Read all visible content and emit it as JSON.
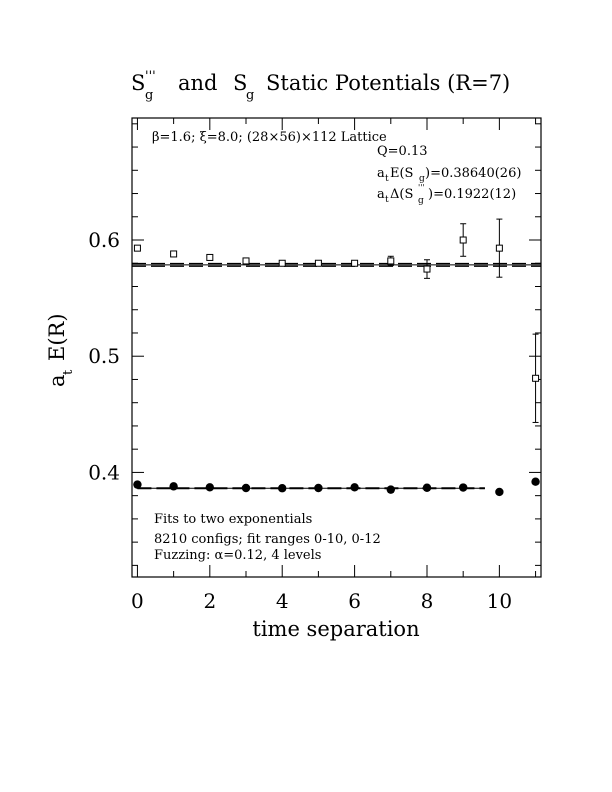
{
  "chart_data": {
    "type": "scatter",
    "title_parts": {
      "s1_main": "S",
      "s1_sup": "'''",
      "s1_sub": "g",
      "and": "and",
      "s2_main": "S",
      "s2_sub": "g",
      "rest": "Static Potentials (R=7)"
    },
    "xlabel": "time separation",
    "ylabel": "a",
    "ylabel_sub": "t",
    "ylabel_rest": "E(R)",
    "xlim": [
      -0.15,
      11.15
    ],
    "ylim": [
      0.31,
      0.705
    ],
    "x_ticks": [
      "0",
      "2",
      "4",
      "6",
      "8",
      "10"
    ],
    "y_ticks": [
      "0.4",
      "0.5",
      "0.6"
    ],
    "annotations": {
      "lattice": "β=1.6; ξ=8.0; (28×56)×112 Lattice",
      "q": "Q=0.13",
      "energy_a": "a",
      "energy_sub_t": "t",
      "energy_mid": "E(S",
      "energy_sub_g": "g",
      "energy_val": ")=0.38640(26)",
      "delta_a": "a",
      "delta_sub_t": "t",
      "delta_mid": "Δ(S",
      "delta_sup": "'''",
      "delta_sub_g": "g",
      "delta_val": " )=0.1922(12)",
      "fits": "Fits to two exponentials",
      "configs": "8210 configs; fit ranges 0-10, 0-12",
      "fuzzing": "Fuzzing: α=0.12, 4 levels"
    },
    "series": [
      {
        "name": "S_g''' (open squares)",
        "marker": "open-square",
        "x": [
          0,
          1,
          2,
          3,
          4,
          5,
          6,
          7,
          8,
          9,
          10,
          11
        ],
        "y": [
          0.593,
          0.588,
          0.585,
          0.582,
          0.58,
          0.58,
          0.58,
          0.582,
          0.575,
          0.6,
          0.593,
          0.481
        ],
        "err": [
          0.002,
          0.002,
          0.002,
          0.002,
          0.002,
          0.002,
          0.003,
          0.004,
          0.008,
          0.014,
          0.025,
          0.038
        ]
      },
      {
        "name": "S_g (filled circles)",
        "marker": "filled-circle",
        "x": [
          0,
          1,
          2,
          3,
          4,
          5,
          6,
          7,
          8,
          9,
          10,
          11
        ],
        "y": [
          0.3895,
          0.388,
          0.3872,
          0.3866,
          0.3864,
          0.3866,
          0.3872,
          0.3852,
          0.3868,
          0.387,
          0.3832,
          0.392
        ],
        "err": [
          0.001,
          0.001,
          0.001,
          0.001,
          0.001,
          0.001,
          0.001,
          0.001,
          0.001,
          0.001,
          0.002,
          0.002
        ]
      }
    ],
    "fit_lines": [
      {
        "name": "excited fit",
        "y": 0.5786,
        "y_band": [
          0.5774,
          0.5798
        ],
        "x_range": [
          -0.15,
          11.15
        ],
        "style": "solid+dashed"
      },
      {
        "name": "ground fit",
        "y": 0.3864,
        "y_band": [
          0.3861,
          0.3867
        ],
        "x_range": [
          0,
          9.6
        ],
        "style": "solid+dashed"
      }
    ]
  }
}
